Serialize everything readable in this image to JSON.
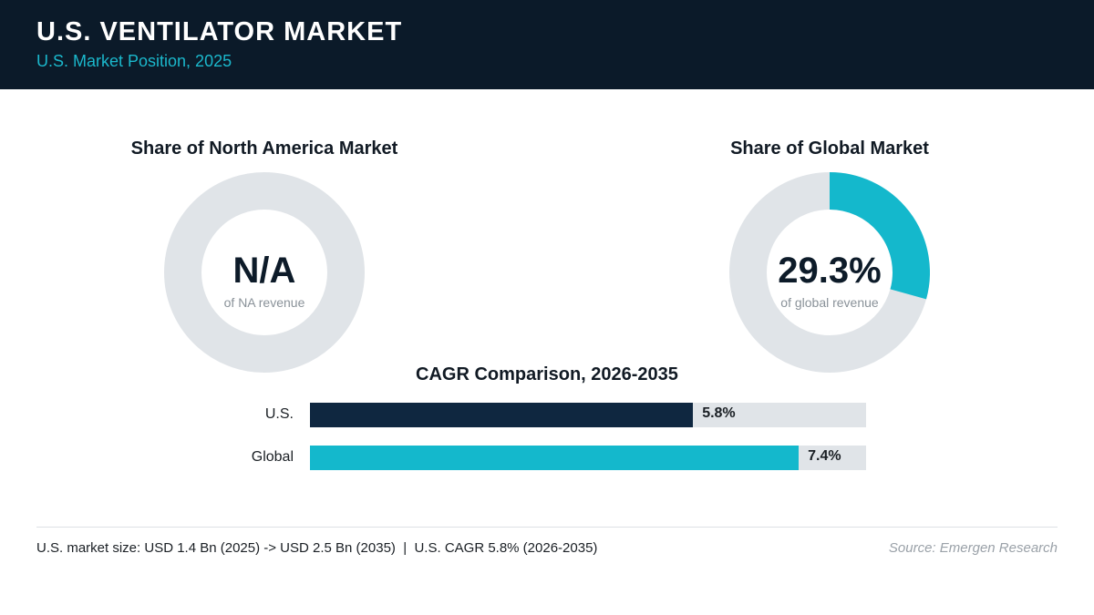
{
  "header": {
    "title": "U.S. VENTILATOR MARKET",
    "subtitle": "U.S. Market Position, 2025"
  },
  "colors": {
    "header_bg": "#0b1a29",
    "accent_cyan": "#14b8cc",
    "us_bar": "#0f2740",
    "track": "#e0e4e8"
  },
  "chart_data": [
    {
      "type": "pie",
      "variant": "donut",
      "title": "Share of North America Market",
      "center_value": "N/A",
      "center_caption": "of NA revenue",
      "value": null
    },
    {
      "type": "pie",
      "variant": "donut",
      "title": "Share of Global Market",
      "center_value": "29.3%",
      "center_caption": "of global revenue",
      "value": 29.3,
      "total": 100
    },
    {
      "type": "bar",
      "orientation": "horizontal",
      "title": "CAGR Comparison, 2026-2035",
      "categories": [
        "U.S.",
        "Global"
      ],
      "values": [
        5.8,
        7.4
      ],
      "value_labels": [
        "5.8%",
        "7.4%"
      ],
      "xlim": [
        0,
        8.42
      ],
      "colors": [
        "#0f2740",
        "#14b8cc"
      ]
    }
  ],
  "footer": {
    "note": "U.S. market size: USD 1.4 Bn (2025) -> USD 2.5 Bn (2035)  |  U.S. CAGR 5.8% (2026-2035)",
    "source": "Source: Emergen Research"
  }
}
